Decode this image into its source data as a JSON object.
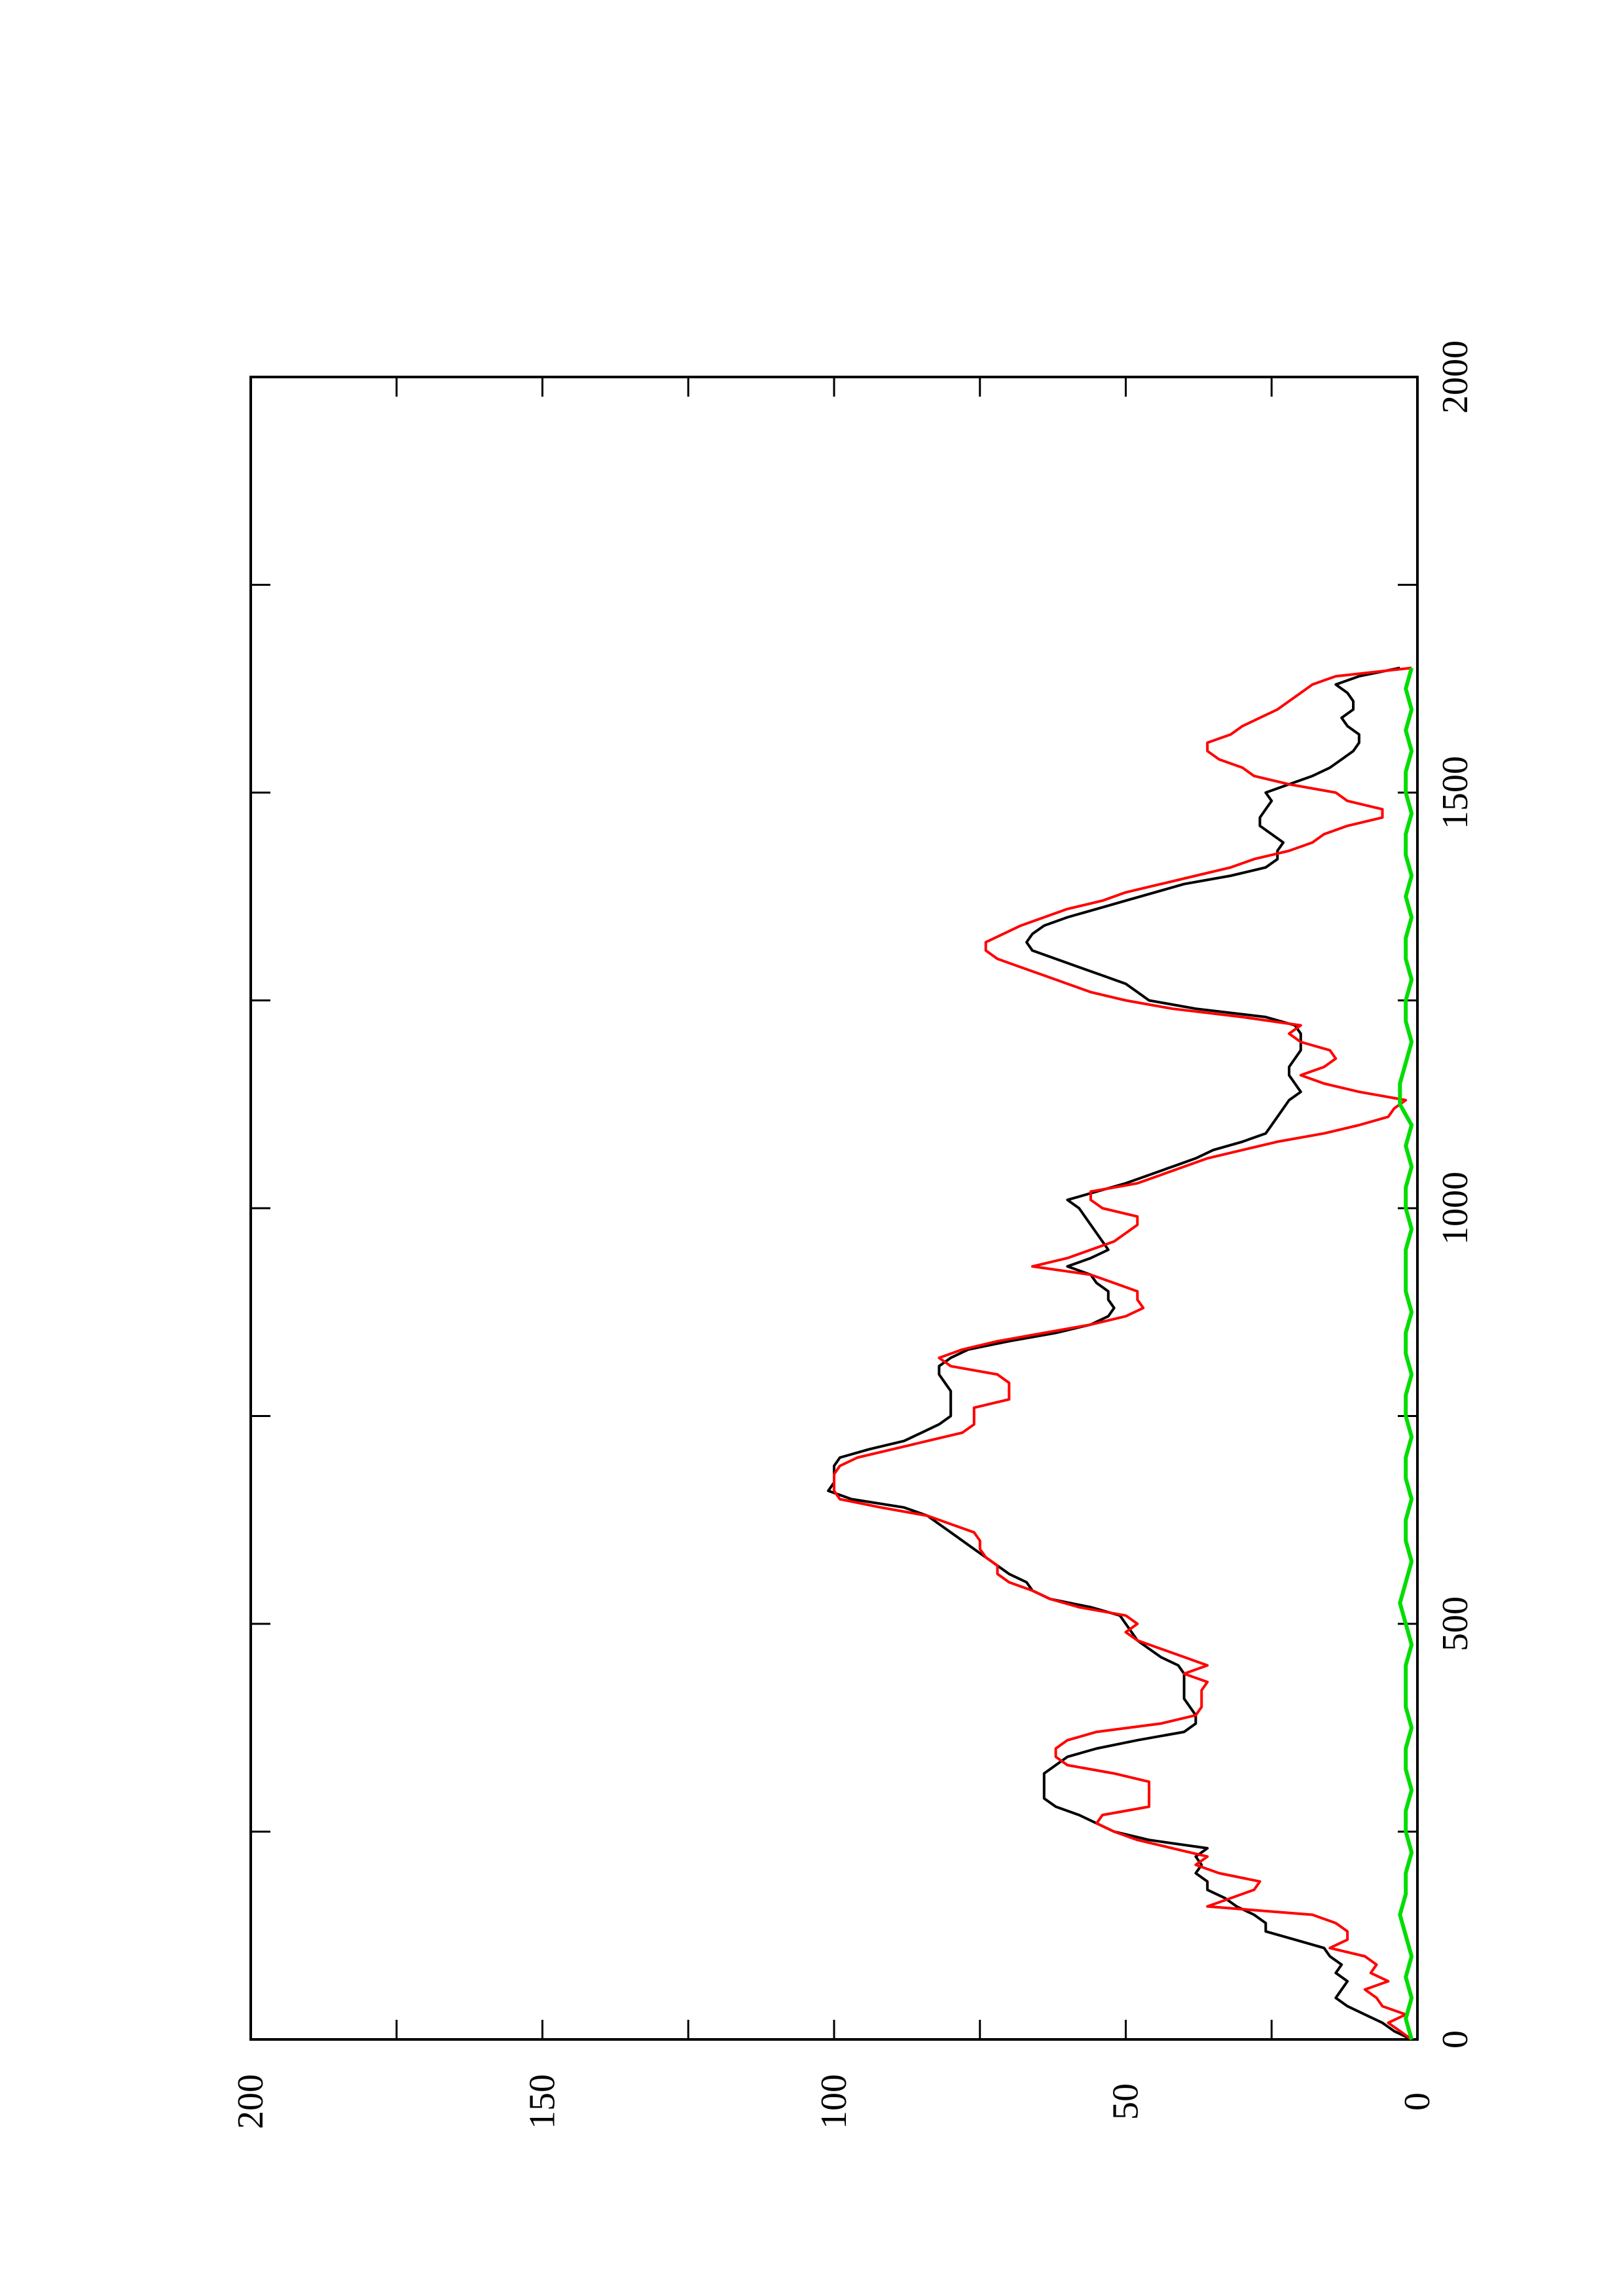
{
  "chart_data": {
    "type": "line",
    "orientation": "rotated-90-counterclockwise",
    "title": "",
    "xlabel": "",
    "ylabel": "",
    "xlim": [
      0,
      2000
    ],
    "ylim": [
      0,
      200
    ],
    "grid": false,
    "legend": "none",
    "x_ticks": [
      0,
      250,
      500,
      750,
      1000,
      1250,
      1500,
      1750,
      2000
    ],
    "x_tick_labels": [
      "0",
      "",
      "500",
      "",
      "1000",
      "",
      "1500",
      "",
      "2000"
    ],
    "y_ticks": [
      0,
      25,
      50,
      75,
      100,
      125,
      150,
      175,
      200
    ],
    "y_tick_labels": [
      "0",
      "",
      "50",
      "",
      "100",
      "",
      "150",
      "",
      "200"
    ],
    "series": [
      {
        "color": "#000000",
        "x": [
          0,
          10,
          20,
          30,
          40,
          50,
          60,
          70,
          80,
          90,
          100,
          110,
          120,
          130,
          140,
          150,
          160,
          170,
          180,
          190,
          200,
          210,
          220,
          230,
          240,
          250,
          260,
          270,
          280,
          290,
          300,
          310,
          320,
          330,
          340,
          350,
          360,
          370,
          380,
          390,
          400,
          410,
          420,
          430,
          440,
          450,
          460,
          470,
          480,
          490,
          500,
          510,
          520,
          530,
          540,
          550,
          560,
          570,
          580,
          590,
          600,
          610,
          620,
          630,
          640,
          650,
          660,
          670,
          680,
          690,
          700,
          710,
          720,
          730,
          740,
          750,
          760,
          770,
          780,
          790,
          800,
          810,
          820,
          830,
          840,
          850,
          860,
          870,
          880,
          890,
          900,
          910,
          920,
          930,
          940,
          950,
          960,
          970,
          980,
          990,
          1000,
          1010,
          1020,
          1030,
          1040,
          1050,
          1060,
          1070,
          1080,
          1090,
          1100,
          1110,
          1120,
          1130,
          1140,
          1150,
          1160,
          1170,
          1180,
          1190,
          1200,
          1210,
          1220,
          1230,
          1240,
          1250,
          1260,
          1270,
          1280,
          1290,
          1300,
          1310,
          1320,
          1330,
          1340,
          1350,
          1360,
          1370,
          1380,
          1390,
          1400,
          1410,
          1420,
          1430,
          1440,
          1450,
          1460,
          1470,
          1480,
          1490,
          1500,
          1510,
          1520,
          1530,
          1540,
          1550,
          1560,
          1570,
          1580,
          1590,
          1600,
          1610,
          1620,
          1630,
          1640,
          1650
        ],
        "y": [
          1,
          4,
          6,
          9,
          12,
          14,
          13,
          12,
          14,
          13,
          15,
          16,
          21,
          26,
          26,
          28,
          31,
          33,
          36,
          36,
          38,
          37,
          38,
          36,
          46,
          52,
          55,
          58,
          62,
          64,
          64,
          64,
          64,
          62,
          60,
          55,
          48,
          40,
          38,
          38,
          39,
          40,
          40,
          40,
          40,
          41,
          44,
          46,
          48,
          49,
          50,
          51,
          56,
          63,
          66,
          67,
          70,
          72,
          74,
          76,
          78,
          80,
          82,
          84,
          88,
          97,
          101,
          100,
          100,
          100,
          99,
          94,
          88,
          85,
          82,
          80,
          80,
          80,
          80,
          81,
          82,
          82,
          80,
          77,
          70,
          62,
          56,
          53,
          52,
          53,
          53,
          55,
          56,
          60,
          56,
          53,
          54,
          55,
          56,
          57,
          58,
          60,
          55,
          50,
          46,
          42,
          38,
          35,
          30,
          26,
          25,
          24,
          23,
          22,
          20,
          21,
          22,
          22,
          21,
          20,
          20,
          20,
          21,
          26,
          38,
          46,
          48,
          50,
          54,
          58,
          62,
          66,
          67,
          66,
          64,
          60,
          55,
          50,
          45,
          40,
          32,
          26,
          24,
          24,
          23,
          25,
          27,
          27,
          26,
          25,
          26,
          22,
          18,
          15,
          13,
          11,
          10,
          10,
          12,
          13,
          11,
          11,
          12,
          14,
          10,
          3
        ]
      },
      {
        "color": "#ff0000",
        "x": [
          0,
          10,
          20,
          30,
          40,
          50,
          60,
          70,
          80,
          90,
          100,
          110,
          120,
          130,
          140,
          150,
          160,
          170,
          180,
          190,
          200,
          210,
          220,
          230,
          240,
          250,
          260,
          270,
          280,
          290,
          300,
          310,
          320,
          330,
          340,
          350,
          360,
          370,
          380,
          390,
          400,
          410,
          420,
          430,
          440,
          450,
          460,
          470,
          480,
          490,
          500,
          510,
          520,
          530,
          540,
          550,
          560,
          570,
          580,
          590,
          600,
          610,
          620,
          630,
          640,
          650,
          660,
          670,
          680,
          690,
          700,
          710,
          720,
          730,
          740,
          750,
          760,
          770,
          780,
          790,
          800,
          810,
          820,
          830,
          840,
          850,
          860,
          870,
          880,
          890,
          900,
          910,
          920,
          930,
          940,
          950,
          960,
          970,
          980,
          990,
          1000,
          1010,
          1020,
          1030,
          1040,
          1050,
          1060,
          1070,
          1080,
          1090,
          1100,
          1110,
          1120,
          1130,
          1140,
          1150,
          1160,
          1170,
          1180,
          1190,
          1200,
          1210,
          1220,
          1230,
          1240,
          1250,
          1260,
          1270,
          1280,
          1290,
          1300,
          1310,
          1320,
          1330,
          1340,
          1350,
          1360,
          1370,
          1380,
          1390,
          1400,
          1410,
          1420,
          1430,
          1440,
          1450,
          1460,
          1470,
          1480,
          1490,
          1500,
          1510,
          1520,
          1530,
          1540,
          1550,
          1560,
          1570,
          1580,
          1590,
          1600,
          1610,
          1620,
          1630,
          1640,
          1650
        ],
        "y": [
          1,
          3,
          5,
          2,
          6,
          7,
          9,
          5,
          8,
          7,
          9,
          15,
          12,
          12,
          14,
          18,
          36,
          32,
          28,
          27,
          34,
          38,
          36,
          42,
          48,
          52,
          55,
          54,
          46,
          46,
          46,
          46,
          52,
          60,
          62,
          62,
          60,
          55,
          44,
          38,
          37,
          37,
          37,
          36,
          40,
          36,
          40,
          44,
          48,
          50,
          48,
          50,
          58,
          63,
          66,
          70,
          72,
          72,
          74,
          75,
          75,
          76,
          80,
          84,
          92,
          99,
          100,
          100,
          100,
          99,
          96,
          90,
          84,
          78,
          76,
          76,
          76,
          70,
          70,
          70,
          72,
          80,
          82,
          78,
          72,
          64,
          56,
          50,
          47,
          48,
          48,
          52,
          56,
          66,
          60,
          56,
          52,
          50,
          48,
          48,
          54,
          56,
          56,
          48,
          44,
          40,
          36,
          30,
          24,
          16,
          10,
          5,
          4,
          2,
          10,
          16,
          20,
          16,
          14,
          15,
          20,
          22,
          20,
          30,
          42,
          50,
          56,
          60,
          64,
          68,
          72,
          74,
          74,
          71,
          68,
          64,
          60,
          54,
          50,
          44,
          38,
          32,
          28,
          22,
          18,
          16,
          12,
          6,
          6,
          12,
          14,
          22,
          28,
          30,
          34,
          36,
          36,
          32,
          30,
          27,
          24,
          22,
          20,
          18,
          14,
          1
        ]
      },
      {
        "color": "#00dd00",
        "x": [
          0,
          25,
          50,
          75,
          100,
          125,
          150,
          175,
          200,
          225,
          250,
          275,
          300,
          325,
          350,
          375,
          400,
          425,
          450,
          475,
          500,
          525,
          550,
          575,
          600,
          625,
          650,
          675,
          700,
          725,
          750,
          775,
          800,
          825,
          850,
          875,
          900,
          925,
          950,
          975,
          1000,
          1025,
          1050,
          1075,
          1100,
          1125,
          1150,
          1175,
          1200,
          1225,
          1250,
          1275,
          1300,
          1325,
          1350,
          1375,
          1400,
          1425,
          1450,
          1475,
          1500,
          1525,
          1550,
          1575,
          1600,
          1625,
          1650
        ],
        "y": [
          1,
          2,
          1,
          2,
          1,
          2,
          3,
          2,
          2,
          1,
          2,
          2,
          1,
          2,
          2,
          1,
          2,
          2,
          2,
          1,
          2,
          3,
          2,
          1,
          2,
          2,
          1,
          2,
          2,
          1,
          2,
          2,
          1,
          2,
          2,
          1,
          2,
          2,
          2,
          1,
          2,
          2,
          1,
          2,
          1,
          3,
          3,
          2,
          1,
          2,
          2,
          1,
          2,
          2,
          1,
          2,
          1,
          2,
          2,
          1,
          2,
          2,
          1,
          2,
          1,
          2,
          1
        ]
      }
    ]
  }
}
